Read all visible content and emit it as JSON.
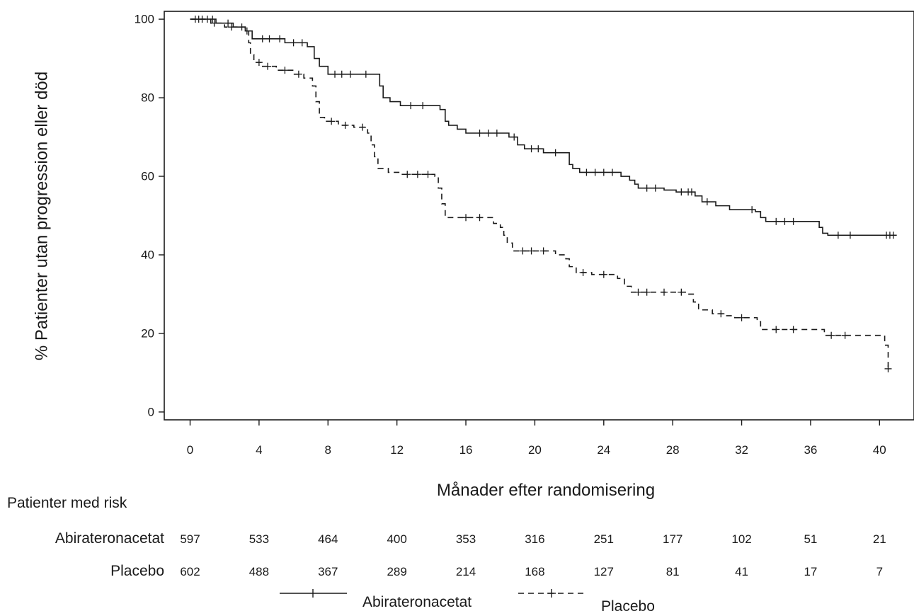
{
  "chart_data": {
    "type": "line",
    "title": "",
    "xlabel": "Månader efter randomisering",
    "ylabel": "% Patienter utan progression eller död",
    "xlim": [
      -1.5,
      42
    ],
    "ylim": [
      -2,
      102
    ],
    "xticks": [
      "0",
      "4",
      "8",
      "12",
      "16",
      "20",
      "24",
      "28",
      "32",
      "36",
      "40"
    ],
    "yticks": [
      "0",
      "20",
      "40",
      "60",
      "80",
      "100"
    ],
    "grid": false,
    "step": true,
    "series": [
      {
        "name": "Abirateronacetat",
        "line_style": "solid",
        "color": "#1a1a1a",
        "points": [
          [
            0,
            100
          ],
          [
            1.5,
            99
          ],
          [
            2.5,
            98
          ],
          [
            3.2,
            97
          ],
          [
            3.6,
            95
          ],
          [
            5.5,
            94
          ],
          [
            6.8,
            93
          ],
          [
            7.2,
            90
          ],
          [
            7.5,
            88
          ],
          [
            8,
            86
          ],
          [
            10.8,
            86
          ],
          [
            11,
            83
          ],
          [
            11.2,
            80
          ],
          [
            11.6,
            79
          ],
          [
            12.2,
            78
          ],
          [
            14.5,
            77
          ],
          [
            14.8,
            74
          ],
          [
            15,
            73
          ],
          [
            15.5,
            72
          ],
          [
            16,
            71
          ],
          [
            18,
            71
          ],
          [
            18.5,
            70
          ],
          [
            19,
            68
          ],
          [
            19.4,
            67
          ],
          [
            20.5,
            66
          ],
          [
            21.8,
            66
          ],
          [
            22,
            63
          ],
          [
            22.2,
            62
          ],
          [
            22.6,
            61
          ],
          [
            25,
            60
          ],
          [
            25.5,
            59
          ],
          [
            25.8,
            58
          ],
          [
            26,
            57
          ],
          [
            27.5,
            56.5
          ],
          [
            28.2,
            56
          ],
          [
            29.3,
            55
          ],
          [
            29.7,
            53.5
          ],
          [
            30.5,
            52.5
          ],
          [
            31.3,
            51.5
          ],
          [
            32.8,
            51
          ],
          [
            33.1,
            49.5
          ],
          [
            33.4,
            48.5
          ],
          [
            36.5,
            47
          ],
          [
            36.7,
            45.5
          ],
          [
            37,
            45
          ],
          [
            41,
            45
          ]
        ],
        "censor_x": [
          0.5,
          1,
          1.3,
          2.2,
          3,
          3.3,
          4.2,
          4.6,
          5.2,
          6,
          6.5,
          8.4,
          8.8,
          9.3,
          10.2,
          12.8,
          13.5,
          16.8,
          17.3,
          17.8,
          18.8,
          19.8,
          20.2,
          21.2,
          23,
          23.5,
          24,
          24.5,
          26.5,
          27,
          28.5,
          28.9,
          29.1,
          30,
          32.6,
          34,
          34.5,
          35,
          37.6,
          38.3,
          40.4,
          40.6,
          40.8
        ]
      },
      {
        "name": "Placebo",
        "line_style": "dashed",
        "color": "#1a1a1a",
        "points": [
          [
            0,
            100
          ],
          [
            1.2,
            99
          ],
          [
            2,
            98
          ],
          [
            3.2,
            97
          ],
          [
            3.4,
            94
          ],
          [
            3.5,
            91
          ],
          [
            3.7,
            89
          ],
          [
            4.2,
            88
          ],
          [
            5,
            87
          ],
          [
            6,
            86
          ],
          [
            6.6,
            85
          ],
          [
            7.1,
            83
          ],
          [
            7.3,
            79
          ],
          [
            7.5,
            75
          ],
          [
            7.8,
            74
          ],
          [
            8.6,
            73
          ],
          [
            9.5,
            72.5
          ],
          [
            10.3,
            71
          ],
          [
            10.5,
            68
          ],
          [
            10.7,
            65
          ],
          [
            10.9,
            62
          ],
          [
            11.5,
            61
          ],
          [
            12.2,
            60.5
          ],
          [
            14.2,
            60
          ],
          [
            14.4,
            57
          ],
          [
            14.6,
            53
          ],
          [
            14.8,
            49.5
          ],
          [
            17.6,
            48
          ],
          [
            18,
            47
          ],
          [
            18.2,
            45
          ],
          [
            18.4,
            43
          ],
          [
            18.7,
            41
          ],
          [
            21.2,
            40
          ],
          [
            21.8,
            39
          ],
          [
            22,
            37
          ],
          [
            22.4,
            35.5
          ],
          [
            23.3,
            35
          ],
          [
            24.8,
            34
          ],
          [
            25.2,
            32
          ],
          [
            25.6,
            30.5
          ],
          [
            28.9,
            30
          ],
          [
            29.2,
            28
          ],
          [
            29.5,
            26
          ],
          [
            30.3,
            25
          ],
          [
            31,
            24.5
          ],
          [
            31.6,
            24
          ],
          [
            32.9,
            23
          ],
          [
            33.1,
            21
          ],
          [
            36.8,
            19.5
          ],
          [
            40.3,
            17
          ],
          [
            40.5,
            11
          ]
        ],
        "censor_x": [
          0.3,
          0.7,
          1.4,
          2.4,
          4,
          4.5,
          5.5,
          6.3,
          8.2,
          9,
          10,
          12.6,
          13.2,
          13.8,
          16,
          16.8,
          19.3,
          19.8,
          20.5,
          22.8,
          24,
          26,
          26.5,
          27.5,
          28.5,
          30.8,
          32,
          34,
          35,
          37.2,
          38,
          40.5
        ]
      }
    ],
    "risk_table": {
      "header": "Patienter med risk",
      "time_points": [
        0,
        4,
        8,
        12,
        16,
        20,
        24,
        28,
        32,
        36,
        40
      ],
      "rows": [
        {
          "label": "Abirateronacetat",
          "values": [
            "597",
            "533",
            "464",
            "400",
            "353",
            "316",
            "251",
            "177",
            "102",
            "51",
            "21"
          ]
        },
        {
          "label": "Placebo",
          "values": [
            "602",
            "488",
            "367",
            "289",
            "214",
            "168",
            "127",
            "81",
            "41",
            "17",
            "7"
          ]
        }
      ]
    },
    "legend": {
      "position": "bottom",
      "entries": [
        "Abirateronacetat",
        "Placebo"
      ]
    }
  }
}
